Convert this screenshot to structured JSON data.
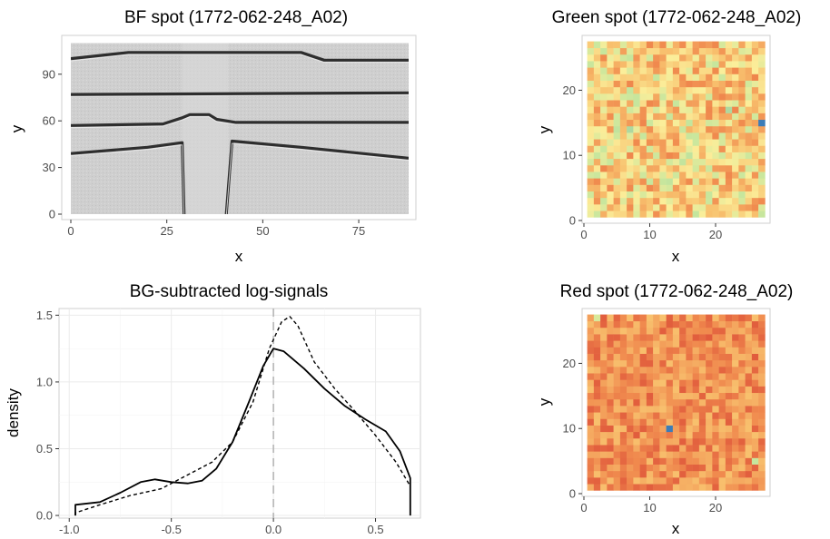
{
  "colors": {
    "heat_low": "#3b7cb8",
    "heat_mid": "#fbee9a",
    "heat_high": "#e45b3b",
    "bf_background": "#cfcfcf",
    "bf_channel": "#2e2e2e"
  },
  "chart_data": [
    {
      "id": "bf",
      "type": "heatmap",
      "title": "BF spot (1772-062-248_A02)",
      "xlabel": "x",
      "ylabel": "y",
      "xlim": [
        0,
        88
      ],
      "ylim": [
        0,
        110
      ],
      "x_ticks": [
        0,
        25,
        50,
        75
      ],
      "y_ticks": [
        0,
        30,
        60,
        90
      ],
      "x_tick_labels": [
        "0",
        "25",
        "50",
        "75"
      ],
      "y_tick_labels": [
        "0",
        "30",
        "60",
        "90"
      ],
      "background": "grayscale brightfield image",
      "channel_lines": [
        {
          "x": [
            0,
            15,
            60,
            66,
            88
          ],
          "y": [
            100,
            104,
            104,
            99,
            99
          ]
        },
        {
          "x": [
            0,
            88
          ],
          "y": [
            77,
            78
          ]
        },
        {
          "x": [
            0,
            24,
            29,
            31,
            36,
            38,
            43,
            88
          ],
          "y": [
            57,
            58,
            62,
            64,
            64,
            61,
            59,
            59
          ]
        },
        {
          "x": [
            0,
            20,
            29,
            29.5
          ],
          "y": [
            39,
            43,
            46,
            0
          ]
        },
        {
          "x": [
            88,
            60,
            42,
            40.5
          ],
          "y": [
            36,
            43,
            47,
            0
          ]
        }
      ]
    },
    {
      "id": "green",
      "type": "heatmap",
      "title": "Green spot (1772-062-248_A02)",
      "xlabel": "x",
      "ylabel": "y",
      "xlim": [
        0,
        28
      ],
      "ylim": [
        0,
        28
      ],
      "x_ticks": [
        0,
        10,
        20
      ],
      "y_ticks": [
        0,
        10,
        20
      ],
      "x_tick_labels": [
        "0",
        "10",
        "20"
      ],
      "y_tick_labels": [
        "0",
        "10",
        "20"
      ],
      "grid_size": 27,
      "palette": "Spectral",
      "mean_level": 0.6,
      "spread": 0.26,
      "seed": 11,
      "highlights": [
        {
          "x": 26.5,
          "y": 14.5,
          "level": 0.0
        },
        {
          "x": 21.5,
          "y": 16.5,
          "level": 0.3
        },
        {
          "x": 6.5,
          "y": 13.5,
          "level": 0.3
        },
        {
          "x": 10.5,
          "y": 21.5,
          "level": 0.35
        }
      ]
    },
    {
      "id": "red",
      "type": "heatmap",
      "title": "Red spot (1772-062-248_A02)",
      "xlabel": "x",
      "ylabel": "y",
      "xlim": [
        0,
        28
      ],
      "ylim": [
        0,
        28
      ],
      "x_ticks": [
        0,
        10,
        20
      ],
      "y_ticks": [
        0,
        10,
        20
      ],
      "x_tick_labels": [
        "0",
        "10",
        "20"
      ],
      "y_tick_labels": [
        "0",
        "10",
        "20"
      ],
      "grid_size": 27,
      "palette": "Spectral",
      "mean_level": 0.82,
      "spread": 0.14,
      "seed": 29,
      "highlights": [
        {
          "x": 12.5,
          "y": 9.5,
          "level": 0.0
        },
        {
          "x": 25.5,
          "y": 4.5,
          "level": 0.35
        },
        {
          "x": 1.5,
          "y": 26.5,
          "level": 0.4
        }
      ]
    },
    {
      "id": "density",
      "type": "line",
      "title": "BG-subtracted log-signals",
      "xlabel": "",
      "ylabel": "density",
      "xlim": [
        -1.05,
        0.72
      ],
      "ylim": [
        -0.02,
        1.55
      ],
      "x_ticks": [
        -1.0,
        -0.5,
        0.0,
        0.5
      ],
      "y_ticks": [
        0.0,
        0.5,
        1.0,
        1.5
      ],
      "x_tick_labels": [
        "-1.0",
        "-0.5",
        "0.0",
        "0.5"
      ],
      "y_tick_labels": [
        "0.0",
        "0.5",
        "1.0",
        "1.5"
      ],
      "vline": 0.0,
      "series": [
        {
          "style": "solid",
          "x": [
            -0.97,
            -0.97,
            -0.85,
            -0.75,
            -0.65,
            -0.58,
            -0.5,
            -0.42,
            -0.35,
            -0.28,
            -0.2,
            -0.12,
            -0.05,
            0.0,
            0.05,
            0.15,
            0.25,
            0.35,
            0.45,
            0.55,
            0.62,
            0.67,
            0.67
          ],
          "y": [
            0.0,
            0.08,
            0.1,
            0.17,
            0.25,
            0.27,
            0.25,
            0.24,
            0.26,
            0.35,
            0.55,
            0.85,
            1.12,
            1.25,
            1.23,
            1.1,
            0.95,
            0.82,
            0.72,
            0.63,
            0.48,
            0.28,
            0.0
          ]
        },
        {
          "style": "dashed",
          "x": [
            -0.97,
            -0.97,
            -0.85,
            -0.7,
            -0.55,
            -0.45,
            -0.3,
            -0.2,
            -0.1,
            -0.02,
            0.04,
            0.08,
            0.12,
            0.2,
            0.3,
            0.4,
            0.5,
            0.6,
            0.67,
            0.67
          ],
          "y": [
            0.0,
            0.02,
            0.08,
            0.15,
            0.2,
            0.28,
            0.4,
            0.55,
            0.85,
            1.25,
            1.45,
            1.49,
            1.42,
            1.15,
            0.95,
            0.78,
            0.6,
            0.4,
            0.22,
            0.0
          ]
        }
      ]
    }
  ]
}
